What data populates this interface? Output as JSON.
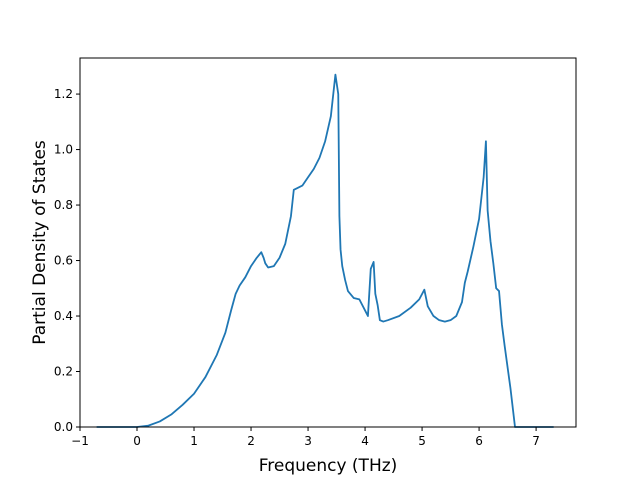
{
  "chart_data": {
    "type": "line",
    "title": "",
    "xlabel": "Frequency (THz)",
    "ylabel": "Partial Density of States",
    "xlim": [
      -1.0,
      7.7
    ],
    "ylim": [
      0.0,
      1.33
    ],
    "xticks": [
      -1,
      0,
      1,
      2,
      3,
      4,
      5,
      6,
      7
    ],
    "xtick_labels": [
      "−1",
      "0",
      "1",
      "2",
      "3",
      "4",
      "5",
      "6",
      "7"
    ],
    "yticks": [
      0.0,
      0.2,
      0.4,
      0.6,
      0.8,
      1.0,
      1.2
    ],
    "ytick_labels": [
      "0.0",
      "0.2",
      "0.4",
      "0.6",
      "0.8",
      "1.0",
      "1.2"
    ],
    "grid": false,
    "legend": "none",
    "series": [
      {
        "color": "#1f77b4",
        "x": [
          -0.7,
          -0.3,
          0.0,
          0.2,
          0.4,
          0.6,
          0.8,
          1.0,
          1.2,
          1.4,
          1.55,
          1.65,
          1.73,
          1.8,
          1.9,
          2.0,
          2.1,
          2.18,
          2.22,
          2.25,
          2.3,
          2.4,
          2.5,
          2.6,
          2.7,
          2.75,
          2.8,
          2.9,
          3.0,
          3.1,
          3.2,
          3.3,
          3.4,
          3.48,
          3.53,
          3.55,
          3.57,
          3.6,
          3.65,
          3.7,
          3.8,
          3.9,
          4.0,
          4.05,
          4.1,
          4.15,
          4.18,
          4.22,
          4.26,
          4.32,
          4.4,
          4.6,
          4.8,
          4.95,
          5.04,
          5.1,
          5.2,
          5.3,
          5.4,
          5.5,
          5.6,
          5.7,
          5.75,
          5.8,
          5.9,
          6.0,
          6.08,
          6.12,
          6.15,
          6.2,
          6.25,
          6.3,
          6.35,
          6.4,
          6.45,
          6.55,
          6.63,
          6.7,
          7.0,
          7.3
        ],
        "values": [
          0.0,
          0.0,
          0.0,
          0.005,
          0.02,
          0.045,
          0.08,
          0.12,
          0.18,
          0.26,
          0.34,
          0.42,
          0.48,
          0.51,
          0.54,
          0.58,
          0.61,
          0.63,
          0.61,
          0.59,
          0.575,
          0.58,
          0.61,
          0.66,
          0.76,
          0.855,
          0.86,
          0.87,
          0.9,
          0.93,
          0.97,
          1.03,
          1.12,
          1.27,
          1.2,
          0.76,
          0.64,
          0.58,
          0.53,
          0.49,
          0.465,
          0.46,
          0.42,
          0.4,
          0.57,
          0.595,
          0.48,
          0.44,
          0.385,
          0.38,
          0.385,
          0.4,
          0.43,
          0.46,
          0.495,
          0.435,
          0.4,
          0.385,
          0.38,
          0.385,
          0.4,
          0.45,
          0.52,
          0.56,
          0.65,
          0.75,
          0.9,
          1.03,
          0.78,
          0.67,
          0.59,
          0.5,
          0.49,
          0.37,
          0.29,
          0.14,
          0.0,
          0.0,
          0.0,
          0.0
        ]
      }
    ]
  }
}
